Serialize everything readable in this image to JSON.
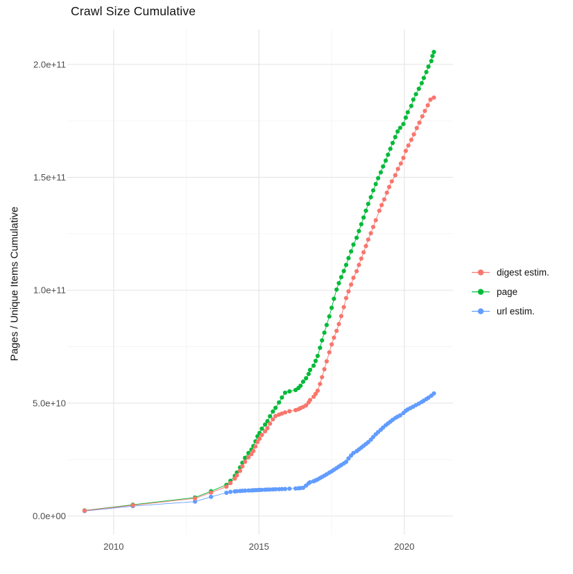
{
  "title": "Crawl Size Cumulative",
  "colors": {
    "digest": "#F8766D",
    "page": "#00BA38",
    "url": "#619CFF",
    "grid_major": "#E4E4E4",
    "grid_minor": "#F1F1F1",
    "tick_text": "#4D4D4D",
    "text": "#111111",
    "background": "#FFFFFF"
  },
  "chart_data": {
    "type": "scatter",
    "title": "Crawl Size Cumulative",
    "xlabel": "",
    "ylabel": "Pages / Unique Items Cumulative",
    "grid": true,
    "legend_position": "right",
    "x_domain": [
      2008.4,
      2021.65
    ],
    "y_domain_e9": [
      -10.5,
      215.5
    ],
    "x_major_ticks": [
      {
        "value": 2010,
        "label": "2010"
      },
      {
        "value": 2015,
        "label": "2015"
      },
      {
        "value": 2020,
        "label": "2020"
      }
    ],
    "x_minor_ticks": [
      2012.5,
      2017.5
    ],
    "y_major_ticks_e9": [
      {
        "value": 0,
        "label": "0.0e+00"
      },
      {
        "value": 50,
        "label": "5.0e+10"
      },
      {
        "value": 100,
        "label": "1.0e+11"
      },
      {
        "value": 150,
        "label": "1.5e+11"
      },
      {
        "value": 200,
        "label": "2.0e+11"
      }
    ],
    "y_minor_ticks_e9": [
      25,
      75,
      125,
      175
    ],
    "units_note": "values_in_billions",
    "legend": [
      "digest estim.",
      "page",
      "url estim."
    ],
    "draw_order": [
      1,
      2,
      0
    ],
    "series": [
      {
        "name": "digest estim.",
        "color": "#F8766D",
        "points": [
          [
            2009.0,
            2.4
          ],
          [
            2010.66,
            4.8
          ],
          [
            2012.8,
            7.8
          ],
          [
            2013.35,
            10.4
          ],
          [
            2013.88,
            13.0
          ],
          [
            2014.02,
            14.6
          ],
          [
            2014.17,
            16.6
          ],
          [
            2014.24,
            18.0
          ],
          [
            2014.35,
            20.0
          ],
          [
            2014.43,
            22.0
          ],
          [
            2014.52,
            24.0
          ],
          [
            2014.64,
            26.0
          ],
          [
            2014.74,
            27.4
          ],
          [
            2014.81,
            28.8
          ],
          [
            2014.88,
            30.8
          ],
          [
            2014.95,
            32.8
          ],
          [
            2015.02,
            34.2
          ],
          [
            2015.1,
            35.9
          ],
          [
            2015.21,
            37.5
          ],
          [
            2015.29,
            38.9
          ],
          [
            2015.38,
            40.9
          ],
          [
            2015.48,
            42.8
          ],
          [
            2015.57,
            44.3
          ],
          [
            2015.69,
            44.9
          ],
          [
            2015.79,
            45.4
          ],
          [
            2015.9,
            45.9
          ],
          [
            2016.05,
            46.4
          ],
          [
            2016.26,
            46.9
          ],
          [
            2016.36,
            47.3
          ],
          [
            2016.43,
            47.8
          ],
          [
            2016.52,
            48.3
          ],
          [
            2016.62,
            49.0
          ],
          [
            2016.71,
            50.3
          ],
          [
            2016.76,
            51.4
          ],
          [
            2016.88,
            52.8
          ],
          [
            2016.95,
            54.1
          ],
          [
            2017.02,
            55.5
          ],
          [
            2017.1,
            58.5
          ],
          [
            2017.17,
            61.5
          ],
          [
            2017.25,
            65.0
          ],
          [
            2017.33,
            68.5
          ],
          [
            2017.42,
            72.5
          ],
          [
            2017.5,
            76.0
          ],
          [
            2017.58,
            79.0
          ],
          [
            2017.67,
            82.0
          ],
          [
            2017.75,
            85.0
          ],
          [
            2017.83,
            88.5
          ],
          [
            2017.92,
            92.5
          ],
          [
            2018.0,
            96.5
          ],
          [
            2018.08,
            99.5
          ],
          [
            2018.17,
            102.5
          ],
          [
            2018.25,
            105.5
          ],
          [
            2018.36,
            108.4
          ],
          [
            2018.44,
            111.2
          ],
          [
            2018.52,
            114.0
          ],
          [
            2018.6,
            116.8
          ],
          [
            2018.68,
            119.6
          ],
          [
            2018.76,
            122.4
          ],
          [
            2018.85,
            125.2
          ],
          [
            2018.93,
            128.0
          ],
          [
            2019.02,
            131.0
          ],
          [
            2019.14,
            135.2
          ],
          [
            2019.22,
            137.7
          ],
          [
            2019.31,
            140.2
          ],
          [
            2019.4,
            143.2
          ],
          [
            2019.48,
            145.7
          ],
          [
            2019.57,
            148.2
          ],
          [
            2019.69,
            150.9
          ],
          [
            2019.78,
            153.7
          ],
          [
            2019.88,
            156.1
          ],
          [
            2019.97,
            158.6
          ],
          [
            2020.05,
            161.7
          ],
          [
            2020.14,
            164.1
          ],
          [
            2020.24,
            166.6
          ],
          [
            2020.33,
            169.0
          ],
          [
            2020.43,
            171.8
          ],
          [
            2020.52,
            174.2
          ],
          [
            2020.62,
            177.0
          ],
          [
            2020.71,
            179.4
          ],
          [
            2020.81,
            181.9
          ],
          [
            2020.9,
            184.4
          ],
          [
            2021.02,
            185.3
          ]
        ]
      },
      {
        "name": "page",
        "color": "#00BA38",
        "points": [
          [
            2009.0,
            2.5
          ],
          [
            2010.66,
            5.0
          ],
          [
            2012.8,
            8.2
          ],
          [
            2013.35,
            11.0
          ],
          [
            2013.88,
            13.8
          ],
          [
            2014.02,
            15.6
          ],
          [
            2014.17,
            17.8
          ],
          [
            2014.24,
            19.3
          ],
          [
            2014.35,
            21.5
          ],
          [
            2014.43,
            23.6
          ],
          [
            2014.52,
            25.8
          ],
          [
            2014.64,
            27.9
          ],
          [
            2014.74,
            29.4
          ],
          [
            2014.81,
            31.0
          ],
          [
            2014.88,
            33.1
          ],
          [
            2014.95,
            35.3
          ],
          [
            2015.02,
            36.8
          ],
          [
            2015.1,
            38.7
          ],
          [
            2015.21,
            40.5
          ],
          [
            2015.29,
            42.0
          ],
          [
            2015.38,
            44.2
          ],
          [
            2015.48,
            46.3
          ],
          [
            2015.57,
            47.9
          ],
          [
            2015.69,
            50.3
          ],
          [
            2015.79,
            52.5
          ],
          [
            2015.9,
            54.6
          ],
          [
            2016.05,
            55.2
          ],
          [
            2016.26,
            55.8
          ],
          [
            2016.36,
            56.7
          ],
          [
            2016.43,
            57.7
          ],
          [
            2016.52,
            59.5
          ],
          [
            2016.62,
            61.0
          ],
          [
            2016.71,
            62.9
          ],
          [
            2016.76,
            64.7
          ],
          [
            2016.88,
            66.6
          ],
          [
            2016.95,
            68.7
          ],
          [
            2017.02,
            70.9
          ],
          [
            2017.1,
            74.5
          ],
          [
            2017.17,
            77.8
          ],
          [
            2017.25,
            81.2
          ],
          [
            2017.33,
            84.6
          ],
          [
            2017.42,
            88.4
          ],
          [
            2017.5,
            92.2
          ],
          [
            2017.58,
            96.2
          ],
          [
            2017.67,
            100.3
          ],
          [
            2017.75,
            103.1
          ],
          [
            2017.83,
            105.8
          ],
          [
            2017.92,
            108.5
          ],
          [
            2018.0,
            111.2
          ],
          [
            2018.08,
            114.2
          ],
          [
            2018.17,
            117.2
          ],
          [
            2018.25,
            120.2
          ],
          [
            2018.36,
            123.2
          ],
          [
            2018.44,
            126.2
          ],
          [
            2018.52,
            129.2
          ],
          [
            2018.6,
            132.2
          ],
          [
            2018.68,
            135.2
          ],
          [
            2018.76,
            138.2
          ],
          [
            2018.85,
            141.2
          ],
          [
            2018.93,
            144.2
          ],
          [
            2019.02,
            147.0
          ],
          [
            2019.1,
            149.6
          ],
          [
            2019.19,
            152.2
          ],
          [
            2019.27,
            154.8
          ],
          [
            2019.36,
            157.4
          ],
          [
            2019.44,
            160.0
          ],
          [
            2019.52,
            162.6
          ],
          [
            2019.6,
            165.2
          ],
          [
            2019.69,
            167.8
          ],
          [
            2019.77,
            170.3
          ],
          [
            2019.86,
            171.9
          ],
          [
            2019.97,
            173.6
          ],
          [
            2020.05,
            176.4
          ],
          [
            2020.12,
            178.8
          ],
          [
            2020.24,
            181.6
          ],
          [
            2020.31,
            184.4
          ],
          [
            2020.4,
            186.8
          ],
          [
            2020.5,
            189.2
          ],
          [
            2020.6,
            191.7
          ],
          [
            2020.67,
            194.0
          ],
          [
            2020.76,
            196.6
          ],
          [
            2020.83,
            199.0
          ],
          [
            2020.93,
            201.5
          ],
          [
            2020.97,
            203.7
          ],
          [
            2021.02,
            205.5
          ]
        ]
      },
      {
        "name": "url estim.",
        "color": "#619CFF",
        "points": [
          [
            2009.0,
            2.2
          ],
          [
            2010.66,
            4.4
          ],
          [
            2012.8,
            6.4
          ],
          [
            2013.35,
            8.5
          ],
          [
            2013.88,
            10.3
          ],
          [
            2014.02,
            10.7
          ],
          [
            2014.17,
            10.9
          ],
          [
            2014.24,
            11.0
          ],
          [
            2014.35,
            11.1
          ],
          [
            2014.43,
            11.2
          ],
          [
            2014.52,
            11.25
          ],
          [
            2014.64,
            11.3
          ],
          [
            2014.74,
            11.35
          ],
          [
            2014.81,
            11.4
          ],
          [
            2014.88,
            11.45
          ],
          [
            2014.95,
            11.5
          ],
          [
            2015.02,
            11.55
          ],
          [
            2015.1,
            11.6
          ],
          [
            2015.21,
            11.65
          ],
          [
            2015.29,
            11.7
          ],
          [
            2015.38,
            11.75
          ],
          [
            2015.48,
            11.8
          ],
          [
            2015.57,
            11.85
          ],
          [
            2015.69,
            11.9
          ],
          [
            2015.79,
            11.95
          ],
          [
            2015.9,
            12.0
          ],
          [
            2016.05,
            12.1
          ],
          [
            2016.26,
            12.2
          ],
          [
            2016.36,
            12.3
          ],
          [
            2016.43,
            12.4
          ],
          [
            2016.52,
            12.5
          ],
          [
            2016.62,
            13.5
          ],
          [
            2016.71,
            14.5
          ],
          [
            2016.76,
            15.0
          ],
          [
            2016.88,
            15.4
          ],
          [
            2016.95,
            15.8
          ],
          [
            2017.02,
            16.2
          ],
          [
            2017.1,
            16.8
          ],
          [
            2017.17,
            17.3
          ],
          [
            2017.25,
            17.9
          ],
          [
            2017.33,
            18.5
          ],
          [
            2017.42,
            19.2
          ],
          [
            2017.5,
            19.8
          ],
          [
            2017.58,
            20.5
          ],
          [
            2017.67,
            21.2
          ],
          [
            2017.75,
            21.9
          ],
          [
            2017.83,
            22.6
          ],
          [
            2017.92,
            23.3
          ],
          [
            2018.0,
            24.0
          ],
          [
            2018.08,
            25.5
          ],
          [
            2018.17,
            26.8
          ],
          [
            2018.25,
            27.9
          ],
          [
            2018.36,
            28.7
          ],
          [
            2018.44,
            29.5
          ],
          [
            2018.52,
            30.3
          ],
          [
            2018.6,
            31.1
          ],
          [
            2018.68,
            31.9
          ],
          [
            2018.76,
            32.7
          ],
          [
            2018.85,
            33.8
          ],
          [
            2018.93,
            35.0
          ],
          [
            2019.02,
            36.2
          ],
          [
            2019.1,
            37.2
          ],
          [
            2019.19,
            38.2
          ],
          [
            2019.27,
            39.2
          ],
          [
            2019.36,
            40.2
          ],
          [
            2019.44,
            41.0
          ],
          [
            2019.52,
            41.8
          ],
          [
            2019.6,
            42.6
          ],
          [
            2019.69,
            43.4
          ],
          [
            2019.77,
            44.0
          ],
          [
            2019.86,
            44.6
          ],
          [
            2019.97,
            45.6
          ],
          [
            2020.05,
            46.6
          ],
          [
            2020.12,
            47.2
          ],
          [
            2020.21,
            47.8
          ],
          [
            2020.3,
            48.4
          ],
          [
            2020.4,
            49.1
          ],
          [
            2020.5,
            49.8
          ],
          [
            2020.6,
            50.5
          ],
          [
            2020.67,
            51.1
          ],
          [
            2020.76,
            51.8
          ],
          [
            2020.83,
            52.4
          ],
          [
            2020.93,
            53.3
          ],
          [
            2021.02,
            54.3
          ]
        ]
      }
    ]
  }
}
